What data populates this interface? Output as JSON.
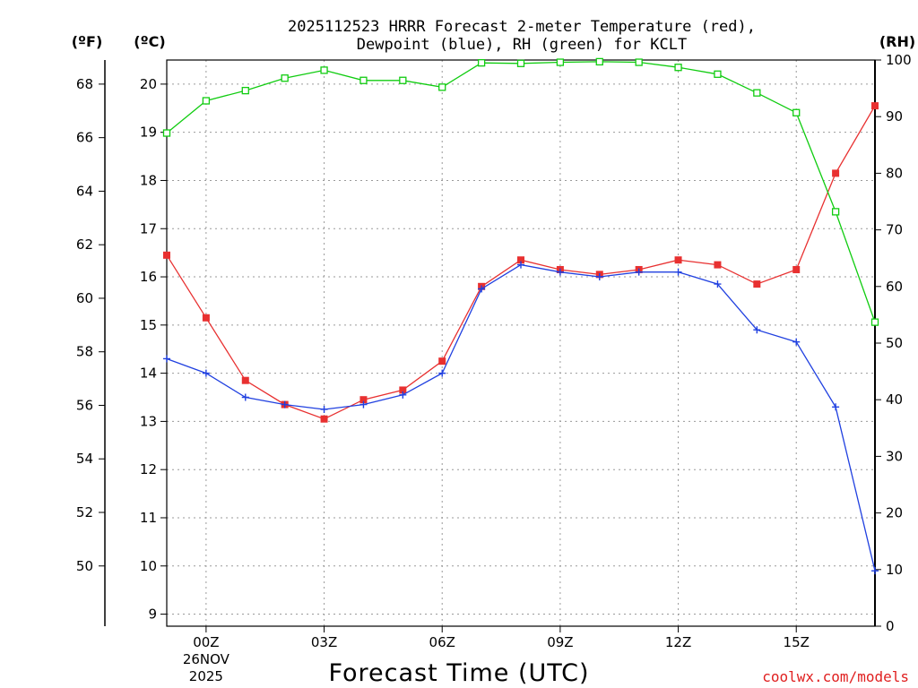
{
  "title_line1": "2025112523 HRRR Forecast 2-meter Temperature (red),",
  "title_line2": "Dewpoint (blue), RH (green) for KCLT",
  "axis_units": {
    "fahrenheit": "(ºF)",
    "celsius": "(ºC)",
    "rh": "(RH)"
  },
  "credit": "coolwx.com/models",
  "colors": {
    "temperature": "#e83030",
    "dewpoint": "#2040e0",
    "rh": "#10cc10"
  },
  "chart_data": {
    "type": "line",
    "title": "2025112523 HRRR Forecast 2-meter Temperature (red), Dewpoint (blue), RH (green) for KCLT",
    "xlabel": "Forecast Time (UTC)",
    "x": [
      -1,
      0,
      1,
      2,
      3,
      4,
      5,
      6,
      7,
      8,
      9,
      10,
      11,
      12,
      13,
      14,
      15,
      16,
      17
    ],
    "xlim": [
      -1,
      17
    ],
    "x_ticks": [
      {
        "x": 0,
        "label": "00Z",
        "sublabel1": "26NOV",
        "sublabel2": "2025"
      },
      {
        "x": 3,
        "label": "03Z"
      },
      {
        "x": 6,
        "label": "06Z"
      },
      {
        "x": 9,
        "label": "09Z"
      },
      {
        "x": 12,
        "label": "12Z"
      },
      {
        "x": 15,
        "label": "15Z"
      }
    ],
    "y_celsius": {
      "range": [
        8.75,
        20.5
      ],
      "ticks": [
        9,
        10,
        11,
        12,
        13,
        14,
        15,
        16,
        17,
        18,
        19,
        20
      ]
    },
    "y_fahrenheit": {
      "ticks": [
        50,
        52,
        54,
        56,
        58,
        60,
        62,
        64,
        66,
        68
      ]
    },
    "y_rh": {
      "range": [
        0,
        100
      ],
      "ticks": [
        0,
        10,
        20,
        30,
        40,
        50,
        60,
        70,
        80,
        90,
        100
      ]
    },
    "series": [
      {
        "name": "Temperature",
        "axis": "celsius",
        "marker": "filled-square",
        "values": [
          16.45,
          15.15,
          13.85,
          13.35,
          13.05,
          13.45,
          13.65,
          14.25,
          15.8,
          16.35,
          16.15,
          16.05,
          16.15,
          16.35,
          16.25,
          15.85,
          16.15,
          18.15,
          19.55
        ]
      },
      {
        "name": "Dewpoint",
        "axis": "celsius",
        "marker": "plus",
        "values": [
          14.3,
          14.0,
          13.5,
          13.35,
          13.25,
          13.35,
          13.55,
          14.0,
          15.75,
          16.25,
          16.1,
          16.0,
          16.1,
          16.1,
          15.85,
          14.9,
          14.65,
          13.3,
          9.9
        ]
      },
      {
        "name": "RH",
        "axis": "rh",
        "marker": "open-square",
        "values": [
          87.1,
          92.8,
          94.6,
          96.8,
          98.2,
          96.4,
          96.4,
          95.2,
          99.5,
          99.4,
          99.6,
          99.7,
          99.6,
          98.7,
          97.5,
          94.2,
          90.7,
          73.2,
          53.7
        ]
      }
    ]
  }
}
